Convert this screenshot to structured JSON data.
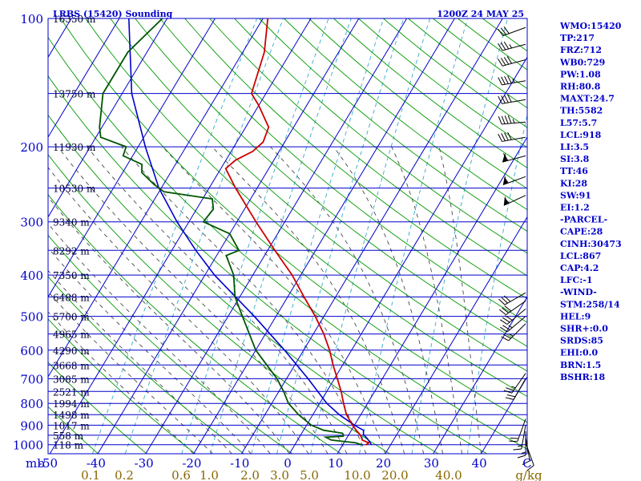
{
  "chart_data": {
    "type": "skew-t",
    "title": "LRBS (15420) Sounding",
    "valid_time": "1200Z 24 MAY 25",
    "pressure_ticks": [
      100,
      200,
      300,
      400,
      500,
      600,
      700,
      800,
      900,
      1000
    ],
    "pressure_unit_label": "mb",
    "temperature_ticks": [
      "-50",
      "-40",
      "-30",
      "-20",
      "-10",
      "0",
      "10",
      "20",
      "30",
      "40",
      "C"
    ],
    "mixing_ratio_labels": [
      "0.1",
      "0.2",
      "0.6",
      "1.0",
      "2.0",
      "3.0",
      "5.0",
      "10.0",
      "20.0",
      "40.0",
      "g/kg"
    ],
    "height_labels": [
      {
        "p": 100,
        "text": "16350 m"
      },
      {
        "p": 150,
        "text": "13750 m"
      },
      {
        "p": 200,
        "text": "11930 m"
      },
      {
        "p": 250,
        "text": "10530 m"
      },
      {
        "p": 300,
        "text": "9340 m"
      },
      {
        "p": 350,
        "text": "8292 m"
      },
      {
        "p": 400,
        "text": "7350 m"
      },
      {
        "p": 450,
        "text": "6488 m"
      },
      {
        "p": 500,
        "text": "5700 m"
      },
      {
        "p": 550,
        "text": "4965 m"
      },
      {
        "p": 600,
        "text": "4290 m"
      },
      {
        "p": 650,
        "text": "3668 m"
      },
      {
        "p": 700,
        "text": "3085 m"
      },
      {
        "p": 750,
        "text": "2521 m"
      },
      {
        "p": 800,
        "text": "1994 m"
      },
      {
        "p": 850,
        "text": "1498 m"
      },
      {
        "p": 900,
        "text": "1017 m"
      },
      {
        "p": 950,
        "text": "558 m"
      },
      {
        "p": 1000,
        "text": "118 m"
      }
    ],
    "temperature_profile": [
      [
        1001,
        14.8
      ],
      [
        990,
        15.2
      ],
      [
        975,
        13.5
      ],
      [
        950,
        12.5
      ],
      [
        925,
        11.0
      ],
      [
        900,
        9.6
      ],
      [
        850,
        7.0
      ],
      [
        800,
        5.0
      ],
      [
        750,
        3.0
      ],
      [
        700,
        0.6
      ],
      [
        650,
        -2.0
      ],
      [
        600,
        -4.6
      ],
      [
        550,
        -7.8
      ],
      [
        500,
        -11.8
      ],
      [
        450,
        -16.6
      ],
      [
        400,
        -21.8
      ],
      [
        350,
        -28.5
      ],
      [
        300,
        -36.0
      ],
      [
        250,
        -44.5
      ],
      [
        225,
        -49.0
      ],
      [
        215,
        -48.0
      ],
      [
        205,
        -45.5
      ],
      [
        195,
        -44.5
      ],
      [
        180,
        -45.2
      ],
      [
        160,
        -50.0
      ],
      [
        150,
        -53.0
      ],
      [
        120,
        -55.5
      ],
      [
        100,
        -59.0
      ]
    ],
    "dewpoint_profile": [
      [
        1001,
        14.0
      ],
      [
        990,
        12.5
      ],
      [
        975,
        7.0
      ],
      [
        960,
        5.5
      ],
      [
        955,
        9.0
      ],
      [
        950,
        9.0
      ],
      [
        940,
        8.5
      ],
      [
        925,
        4.2
      ],
      [
        900,
        1.0
      ],
      [
        850,
        -3.0
      ],
      [
        800,
        -6.5
      ],
      [
        750,
        -9.0
      ],
      [
        700,
        -12.0
      ],
      [
        600,
        -20.0
      ],
      [
        500,
        -27.0
      ],
      [
        450,
        -31.0
      ],
      [
        400,
        -34.0
      ],
      [
        360,
        -38.0
      ],
      [
        350,
        -36.0
      ],
      [
        320,
        -40.0
      ],
      [
        300,
        -47.0
      ],
      [
        280,
        -46.5
      ],
      [
        265,
        -48.0
      ],
      [
        255,
        -59.0
      ],
      [
        245,
        -62.0
      ],
      [
        230,
        -66.0
      ],
      [
        220,
        -67.0
      ],
      [
        210,
        -72.0
      ],
      [
        200,
        -72.5
      ],
      [
        190,
        -79.0
      ],
      [
        180,
        -80.5
      ],
      [
        150,
        -84.0
      ],
      [
        120,
        -84.0
      ],
      [
        100,
        -81.0
      ]
    ],
    "parcel_profile": [
      [
        1000,
        16.0
      ],
      [
        970,
        14.5
      ],
      [
        945,
        13.0
      ],
      [
        925,
        12.5
      ],
      [
        900,
        10.0
      ],
      [
        850,
        5.5
      ],
      [
        800,
        1.5
      ],
      [
        700,
        -5.5
      ],
      [
        600,
        -14.0
      ],
      [
        500,
        -24.5
      ],
      [
        400,
        -38.0
      ],
      [
        350,
        -45.0
      ],
      [
        300,
        -52.5
      ],
      [
        250,
        -60.5
      ],
      [
        200,
        -68.5
      ],
      [
        150,
        -78.0
      ],
      [
        100,
        -88.0
      ]
    ],
    "wind_barbs": [
      {
        "p": 105,
        "dir": 250,
        "spd": 30
      },
      {
        "p": 115,
        "dir": 255,
        "spd": 35
      },
      {
        "p": 125,
        "dir": 255,
        "spd": 40
      },
      {
        "p": 140,
        "dir": 260,
        "spd": 45
      },
      {
        "p": 155,
        "dir": 260,
        "spd": 40
      },
      {
        "p": 175,
        "dir": 265,
        "spd": 45
      },
      {
        "p": 190,
        "dir": 260,
        "spd": 40
      },
      {
        "p": 210,
        "dir": 255,
        "spd": 60
      },
      {
        "p": 235,
        "dir": 250,
        "spd": 55
      },
      {
        "p": 260,
        "dir": 245,
        "spd": 55
      },
      {
        "p": 440,
        "dir": 240,
        "spd": 30
      },
      {
        "p": 460,
        "dir": 235,
        "spd": 30
      },
      {
        "p": 480,
        "dir": 230,
        "spd": 30
      },
      {
        "p": 500,
        "dir": 230,
        "spd": 25
      },
      {
        "p": 520,
        "dir": 225,
        "spd": 25
      },
      {
        "p": 680,
        "dir": 215,
        "spd": 25
      },
      {
        "p": 700,
        "dir": 210,
        "spd": 20
      },
      {
        "p": 870,
        "dir": 200,
        "spd": 20
      },
      {
        "p": 900,
        "dir": 190,
        "spd": 15
      },
      {
        "p": 930,
        "dir": 180,
        "spd": 15
      },
      {
        "p": 960,
        "dir": 170,
        "spd": 10
      },
      {
        "p": 990,
        "dir": 160,
        "spd": 10
      }
    ],
    "indices": [
      "WMO:15420",
      "TP:217",
      "FRZ:712",
      "WB0:729",
      "PW:1.08",
      "RH:80.8",
      "MAXT:24.7",
      "TH:5582",
      "L57:5.7",
      "LCL:918",
      "LI:3.5",
      "SI:3.8",
      "TT:46",
      "KI:28",
      "SW:91",
      "EI:1.2",
      "-PARCEL-",
      "CAPE:28",
      "CINH:30473",
      "LCL:867",
      "CAP:4.2",
      "LFC:-1",
      "-WIND-",
      "STM:258/14",
      "HEL:9",
      "SHR+:0.0",
      "SRDS:85",
      "EHI:0.0",
      "BRN:1.5",
      "BSHR:18"
    ],
    "colors": {
      "isobar": "#0000cc",
      "isotherm": "#0000cc",
      "dry_adiabat": "#009900",
      "moist_adiabat": "#333333",
      "mixing_ratio": "#33aacc",
      "temperature": "#cc0000",
      "dewpoint": "#005500",
      "parcel": "#0000cc",
      "mixing_ratio_labels": "#886600",
      "index_text": "#0000cc"
    }
  }
}
